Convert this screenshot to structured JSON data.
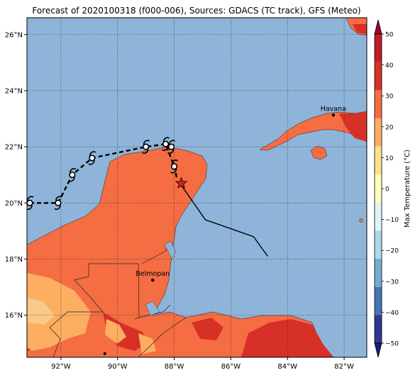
{
  "title": "Forecast of 2020100318 (f000-006), Sources: GDACS (TC track), GFS (Meteo)",
  "map": {
    "lon_min": -93.2,
    "lon_max": -81.2,
    "lat_min": 14.5,
    "lat_max": 26.6,
    "x_ticks": [
      {
        "lon": -92,
        "label": "92°W"
      },
      {
        "lon": -90,
        "label": "90°W"
      },
      {
        "lon": -88,
        "label": "88°W"
      },
      {
        "lon": -86,
        "label": "86°W"
      },
      {
        "lon": -84,
        "label": "84°W"
      },
      {
        "lon": -82,
        "label": "82°W"
      }
    ],
    "y_ticks": [
      {
        "lat": 16,
        "label": "16°N"
      },
      {
        "lat": 18,
        "label": "18°N"
      },
      {
        "lat": 20,
        "label": "20°N"
      },
      {
        "lat": 22,
        "label": "22°N"
      },
      {
        "lat": 24,
        "label": "24°N"
      },
      {
        "lat": 26,
        "label": "26°N"
      }
    ],
    "cities": [
      {
        "name": "Havana",
        "lon": -82.38,
        "lat": 23.13
      },
      {
        "name": "Belmopan",
        "lon": -88.76,
        "lat": 17.25
      }
    ],
    "track_past": [
      [
        -93.1,
        20.0
      ],
      [
        -92.1,
        20.0
      ],
      [
        -91.6,
        21.0
      ],
      [
        -90.9,
        21.6
      ],
      [
        -89.0,
        22.0
      ],
      [
        -88.3,
        22.1
      ],
      [
        -88.0,
        21.3
      ],
      [
        -87.9,
        20.85
      ]
    ],
    "track_forecast": [
      [
        -87.8,
        20.7
      ],
      [
        -86.9,
        19.4
      ],
      [
        -85.2,
        18.8
      ],
      [
        -84.7,
        18.1
      ]
    ],
    "storm_symbols": [
      [
        -93.1,
        20.0
      ],
      [
        -92.1,
        20.0
      ],
      [
        -91.6,
        21.0
      ],
      [
        -90.9,
        21.6
      ],
      [
        -89.0,
        22.0
      ],
      [
        -88.3,
        22.1
      ],
      [
        -88.1,
        22.0
      ],
      [
        -88.0,
        21.3
      ]
    ],
    "current_position": [
      -87.75,
      20.7
    ]
  },
  "colorbar": {
    "label": "Max Temperature (°C)",
    "min": -50,
    "max": 50,
    "ticks": [
      "50",
      "40",
      "30",
      "20",
      "10",
      "0",
      "−10",
      "−20",
      "−30",
      "−40",
      "−50"
    ],
    "colors_top_to_bottom": [
      "#a50026",
      "#c11c2a",
      "#d73027",
      "#f46d43",
      "#fdae61",
      "#fee090",
      "#ffffbf",
      "#e0f3f8",
      "#abd9e9",
      "#74add1",
      "#4575b4",
      "#313695",
      "#1a1a80"
    ]
  },
  "colors": {
    "ocean": "#8fb4d9",
    "land_warm": "#f46d43",
    "land_hot": "#d73027",
    "land_cool": "#fdae61"
  }
}
